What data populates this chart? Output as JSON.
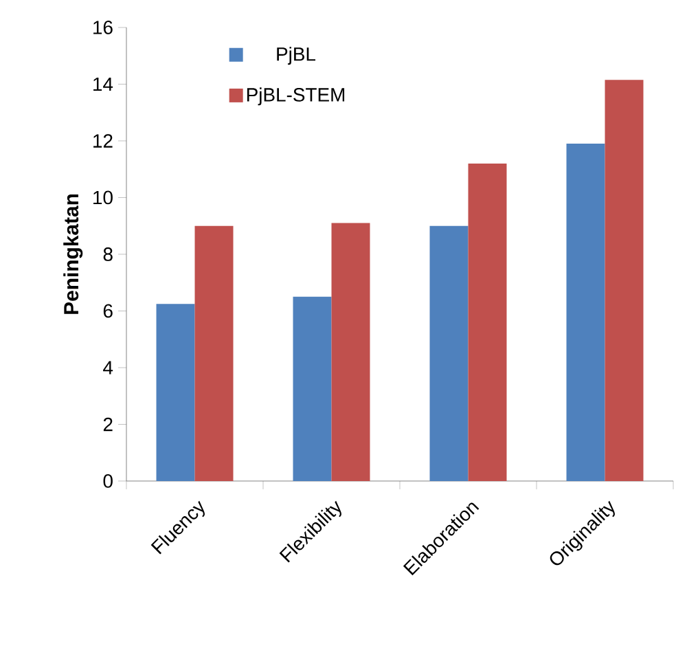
{
  "chart_data": {
    "type": "bar",
    "ylabel": "Peningkatan",
    "categories": [
      "Fluency",
      "Flexibility",
      "Elaboration",
      "Originality"
    ],
    "series": [
      {
        "name": "PjBL",
        "color": "#4f81bd",
        "values": [
          6.25,
          6.5,
          9.0,
          11.9
        ]
      },
      {
        "name": "PjBL-STEM",
        "color": "#c0504d",
        "values": [
          9.0,
          9.1,
          11.2,
          14.15
        ]
      }
    ],
    "ylim": [
      0,
      16
    ],
    "yticks": [
      0,
      2,
      4,
      6,
      8,
      10,
      12,
      14,
      16
    ],
    "grid": false,
    "legend": "top left"
  }
}
